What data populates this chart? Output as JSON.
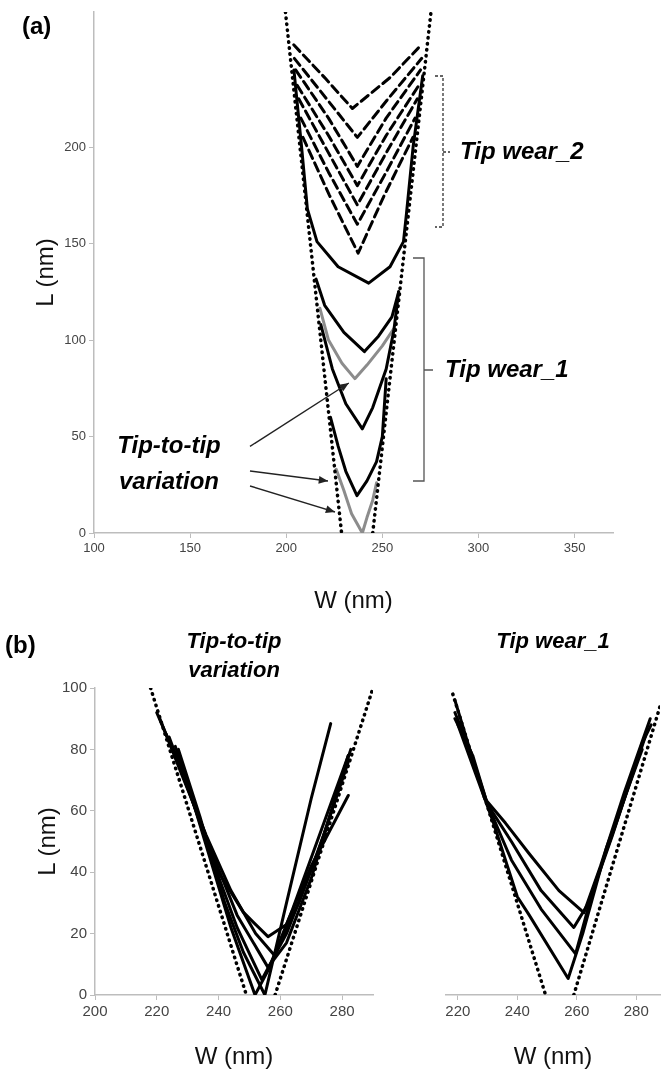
{
  "chart_data": [
    {
      "type": "line",
      "xlabel": "W (nm)",
      "ylabel": "L (nm)",
      "xlim": [
        100,
        370
      ],
      "ylim": [
        0,
        270
      ],
      "xticks": [
        100,
        150,
        200,
        250,
        300,
        350
      ],
      "yticks": [
        0,
        50,
        100,
        150,
        200
      ],
      "grid": false,
      "legend": false,
      "marker": "none",
      "annotations": [
        "(a)",
        "Tip wear_2",
        "Tip wear_1",
        {
          "text": "Tip-to-tip variation",
          "x": 235.7,
          "y": 80
        }
      ],
      "series": [
        {
          "color": "#000000",
          "line_style": "dotted",
          "x": [
            199.6,
            228.8
          ],
          "values": [
            270,
            0
          ]
        },
        {
          "color": "#000000",
          "line_style": "dotted",
          "x": [
            245,
            275.3
          ],
          "values": [
            0,
            270
          ]
        },
        {
          "color": "#8c8c8c",
          "line_style": "solid",
          "x": [
            226,
            230,
            234,
            239.6,
            242,
            245,
            247
          ],
          "values": [
            33,
            22,
            10,
            0,
            8,
            17,
            26
          ]
        },
        {
          "color": "#000000",
          "line_style": "solid",
          "x": [
            223,
            227,
            231,
            236.8,
            242,
            247,
            250,
            252
          ],
          "values": [
            60,
            45,
            32,
            19.4,
            27,
            37,
            50,
            80
          ]
        },
        {
          "color": "#000000",
          "line_style": "solid",
          "x": [
            218,
            224,
            231,
            239.6,
            245,
            252,
            256,
            258.5
          ],
          "values": [
            108,
            85,
            67,
            54,
            65,
            85,
            105,
            125
          ]
        },
        {
          "color": "#8c8c8c",
          "line_style": "solid",
          "x": [
            217.5,
            222,
            229,
            235.7,
            242,
            250,
            256
          ],
          "values": [
            116.5,
            100,
            88,
            80,
            87,
            97,
            106
          ]
        },
        {
          "color": "#000000",
          "line_style": "solid",
          "x": [
            215.5,
            220,
            230,
            240.7,
            248,
            255,
            258.5
          ],
          "values": [
            131.6,
            118,
            104,
            94,
            102,
            112,
            125
          ]
        },
        {
          "color": "#000000",
          "line_style": "solid",
          "x": [
            204,
            208,
            211,
            216,
            227,
            242.9,
            254,
            261,
            262.5,
            266,
            271
          ],
          "values": [
            240,
            200,
            168,
            151,
            138,
            129.5,
            138,
            151,
            165,
            200,
            237
          ]
        },
        {
          "color": "#000000",
          "line_style": "dashed",
          "x": [
            208.7,
            222.5,
            237.4,
            251,
            265.9
          ],
          "values": [
            205,
            175,
            145,
            175,
            205
          ]
        },
        {
          "color": "#000000",
          "line_style": "dashed",
          "x": [
            207.6,
            222,
            237,
            252,
            267
          ],
          "values": [
            215,
            187,
            160,
            187,
            215
          ]
        },
        {
          "color": "#000000",
          "line_style": "dashed",
          "x": [
            206.5,
            222,
            237,
            252,
            268.2
          ],
          "values": [
            225,
            197,
            170,
            197,
            225
          ]
        },
        {
          "color": "#000000",
          "line_style": "dashed",
          "x": [
            205.7,
            222,
            237,
            252,
            269
          ],
          "values": [
            232,
            206,
            180,
            206,
            232
          ]
        },
        {
          "color": "#000000",
          "line_style": "dashed",
          "x": [
            204.9,
            222,
            237,
            252,
            269.9
          ],
          "values": [
            240,
            215,
            190,
            215,
            240
          ]
        },
        {
          "color": "#000000",
          "line_style": "dashed",
          "x": [
            204.2,
            221,
            237,
            253,
            270.5
          ],
          "values": [
            246,
            225,
            205,
            225,
            246
          ]
        },
        {
          "color": "#000000",
          "line_style": "dashed",
          "x": [
            203.9,
            220,
            234.4,
            254,
            268.8
          ],
          "values": [
            253,
            236,
            220,
            236,
            251.4
          ]
        }
      ]
    },
    {
      "type": "line",
      "title": "Tip-to-tip variation",
      "xlabel": "W (nm)",
      "ylabel": "L (nm)",
      "xlim": [
        200,
        290
      ],
      "ylim": [
        0,
        100
      ],
      "xticks": [
        200,
        220,
        240,
        260,
        280
      ],
      "yticks": [
        0,
        20,
        40,
        60,
        80,
        100
      ],
      "grid": false,
      "legend": false,
      "marker": "none",
      "annotations": [
        "(b)"
      ],
      "series": [
        {
          "color": "#000000",
          "line_style": "dotted",
          "x": [
            218,
            249
          ],
          "values": [
            100,
            0
          ]
        },
        {
          "color": "#000000",
          "line_style": "dotted",
          "x": [
            258.3,
            290
          ],
          "values": [
            0,
            100
          ]
        },
        {
          "color": "#000000",
          "line_style": "solid",
          "x": [
            220,
            226,
            232,
            240,
            248,
            256,
            262,
            270,
            282
          ],
          "values": [
            92,
            78,
            62,
            40,
            27,
            19,
            23,
            42,
            65
          ]
        },
        {
          "color": "#000000",
          "line_style": "solid",
          "x": [
            221,
            228,
            236,
            244,
            252,
            258,
            266,
            274,
            282.8
          ],
          "values": [
            90,
            72,
            52,
            34,
            20,
            13,
            30,
            52,
            80
          ]
        },
        {
          "color": "#000000",
          "line_style": "solid",
          "x": [
            223,
            230,
            238,
            246,
            256,
            262,
            270,
            282
          ],
          "values": [
            85,
            68,
            46,
            26,
            9,
            17,
            38,
            78
          ]
        },
        {
          "color": "#000000",
          "line_style": "solid",
          "x": [
            224,
            231,
            238,
            246,
            254,
            262,
            272,
            282
          ],
          "values": [
            84,
            65,
            44,
            22,
            5,
            20,
            46,
            76
          ]
        },
        {
          "color": "#000000",
          "line_style": "solid",
          "x": [
            226,
            232,
            238,
            244,
            251.8,
            256,
            264,
            282
          ],
          "values": [
            81,
            62,
            42,
            22,
            0,
            8,
            28,
            78
          ]
        },
        {
          "color": "#000000",
          "line_style": "solid",
          "x": [
            227,
            234,
            242,
            248,
            255,
            262,
            270,
            276.3
          ],
          "values": [
            80,
            58,
            30,
            14,
            0,
            30,
            64,
            88.4
          ]
        }
      ]
    },
    {
      "type": "line",
      "title": "Tip wear_1",
      "xlabel": "W (nm)",
      "xlim": [
        216,
        288
      ],
      "ylim": [
        0,
        100
      ],
      "xticks": [
        220,
        240,
        260,
        280
      ],
      "tick_labels": "x",
      "grid": false,
      "legend": false,
      "marker": "none",
      "series": [
        {
          "color": "#000000",
          "line_style": "dotted",
          "x": [
            218.3,
            249.5
          ],
          "values": [
            98,
            0
          ]
        },
        {
          "color": "#000000",
          "line_style": "dotted",
          "x": [
            259,
            288
          ],
          "values": [
            0,
            94
          ]
        },
        {
          "color": "#000000",
          "line_style": "solid",
          "x": [
            219,
            224,
            229,
            236,
            244,
            254,
            262.4,
            268,
            276,
            284.7
          ],
          "values": [
            96,
            80,
            64,
            56,
            46,
            34,
            26.8,
            42,
            66,
            90
          ]
        },
        {
          "color": "#000000",
          "line_style": "solid",
          "x": [
            219,
            224,
            230,
            238,
            248,
            259,
            264,
            272,
            282,
            285
          ],
          "values": [
            92,
            80,
            62,
            50,
            34,
            22,
            30,
            52,
            82,
            88
          ]
        },
        {
          "color": "#000000",
          "line_style": "solid",
          "x": [
            219,
            225,
            230,
            238,
            248,
            259.6,
            266,
            274,
            283
          ],
          "values": [
            90,
            78,
            62,
            44,
            28,
            13.4,
            36,
            58,
            84
          ]
        },
        {
          "color": "#000000",
          "line_style": "solid",
          "x": [
            220,
            226,
            232,
            240,
            244,
            257.1,
            262,
            270,
            282
          ],
          "values": [
            88,
            72,
            56,
            32,
            26,
            5.4,
            20,
            48,
            80
          ]
        }
      ]
    }
  ]
}
